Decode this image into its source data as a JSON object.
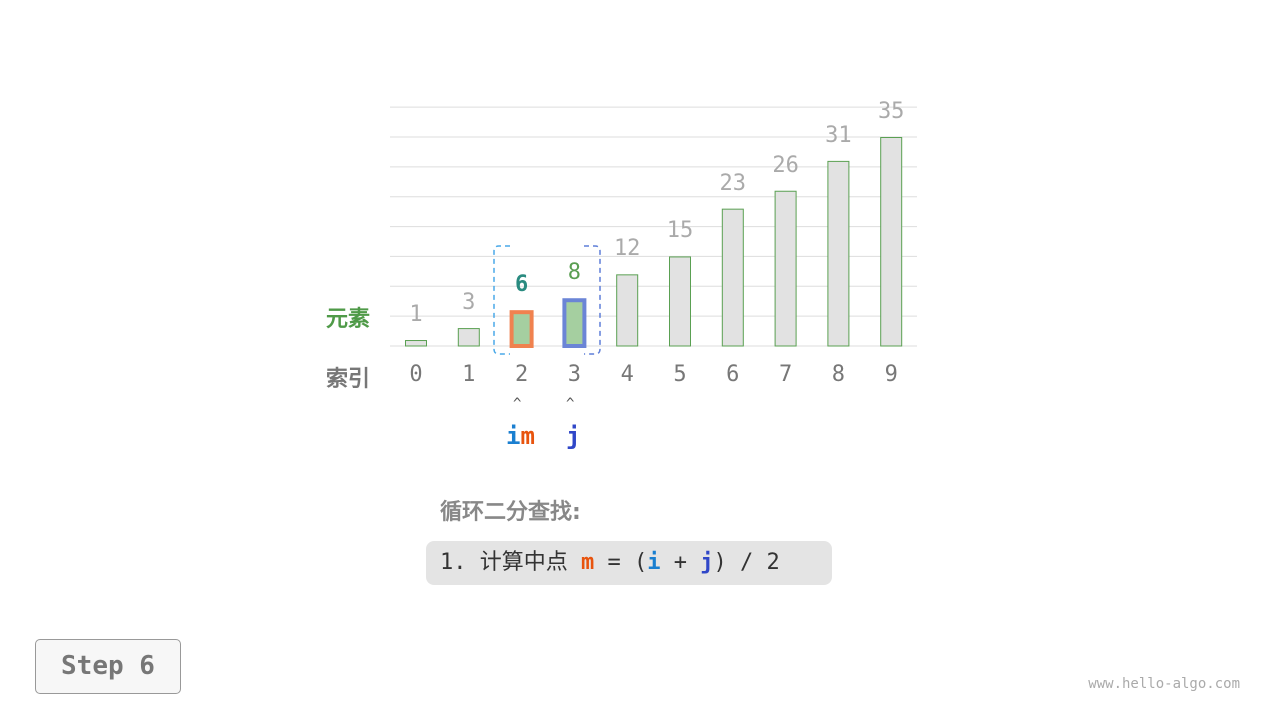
{
  "labels": {
    "element": "元素",
    "index": "索引"
  },
  "array": [
    1,
    3,
    6,
    8,
    12,
    15,
    23,
    26,
    31,
    35
  ],
  "indices": [
    "0",
    "1",
    "2",
    "3",
    "4",
    "5",
    "6",
    "7",
    "8",
    "9"
  ],
  "pointers": {
    "i": "i",
    "m": "m",
    "j": "j",
    "arrow": "^"
  },
  "highlight": {
    "i_index": 2,
    "m_index": 2,
    "j_index": 3
  },
  "colors": {
    "i": "#1a7fd0",
    "m": "#e8540e",
    "j": "#3047c8",
    "bar_fill": "#e2e2e2",
    "bar_border": "#5aa052",
    "active_fill": "#a5cfa0",
    "m_border": "#f0824f",
    "j_border": "#6b85d6",
    "m_value": "#2a8b80",
    "j_value": "#5a9e52"
  },
  "title": "循环二分查找:",
  "formula": {
    "prefix": "1. 计算中点 ",
    "m": "m",
    "eq": " = (",
    "i": "i",
    "plus": " + ",
    "j": "j",
    "suffix": ") / 2"
  },
  "step": "Step 6",
  "watermark": "www.hello-algo.com"
}
